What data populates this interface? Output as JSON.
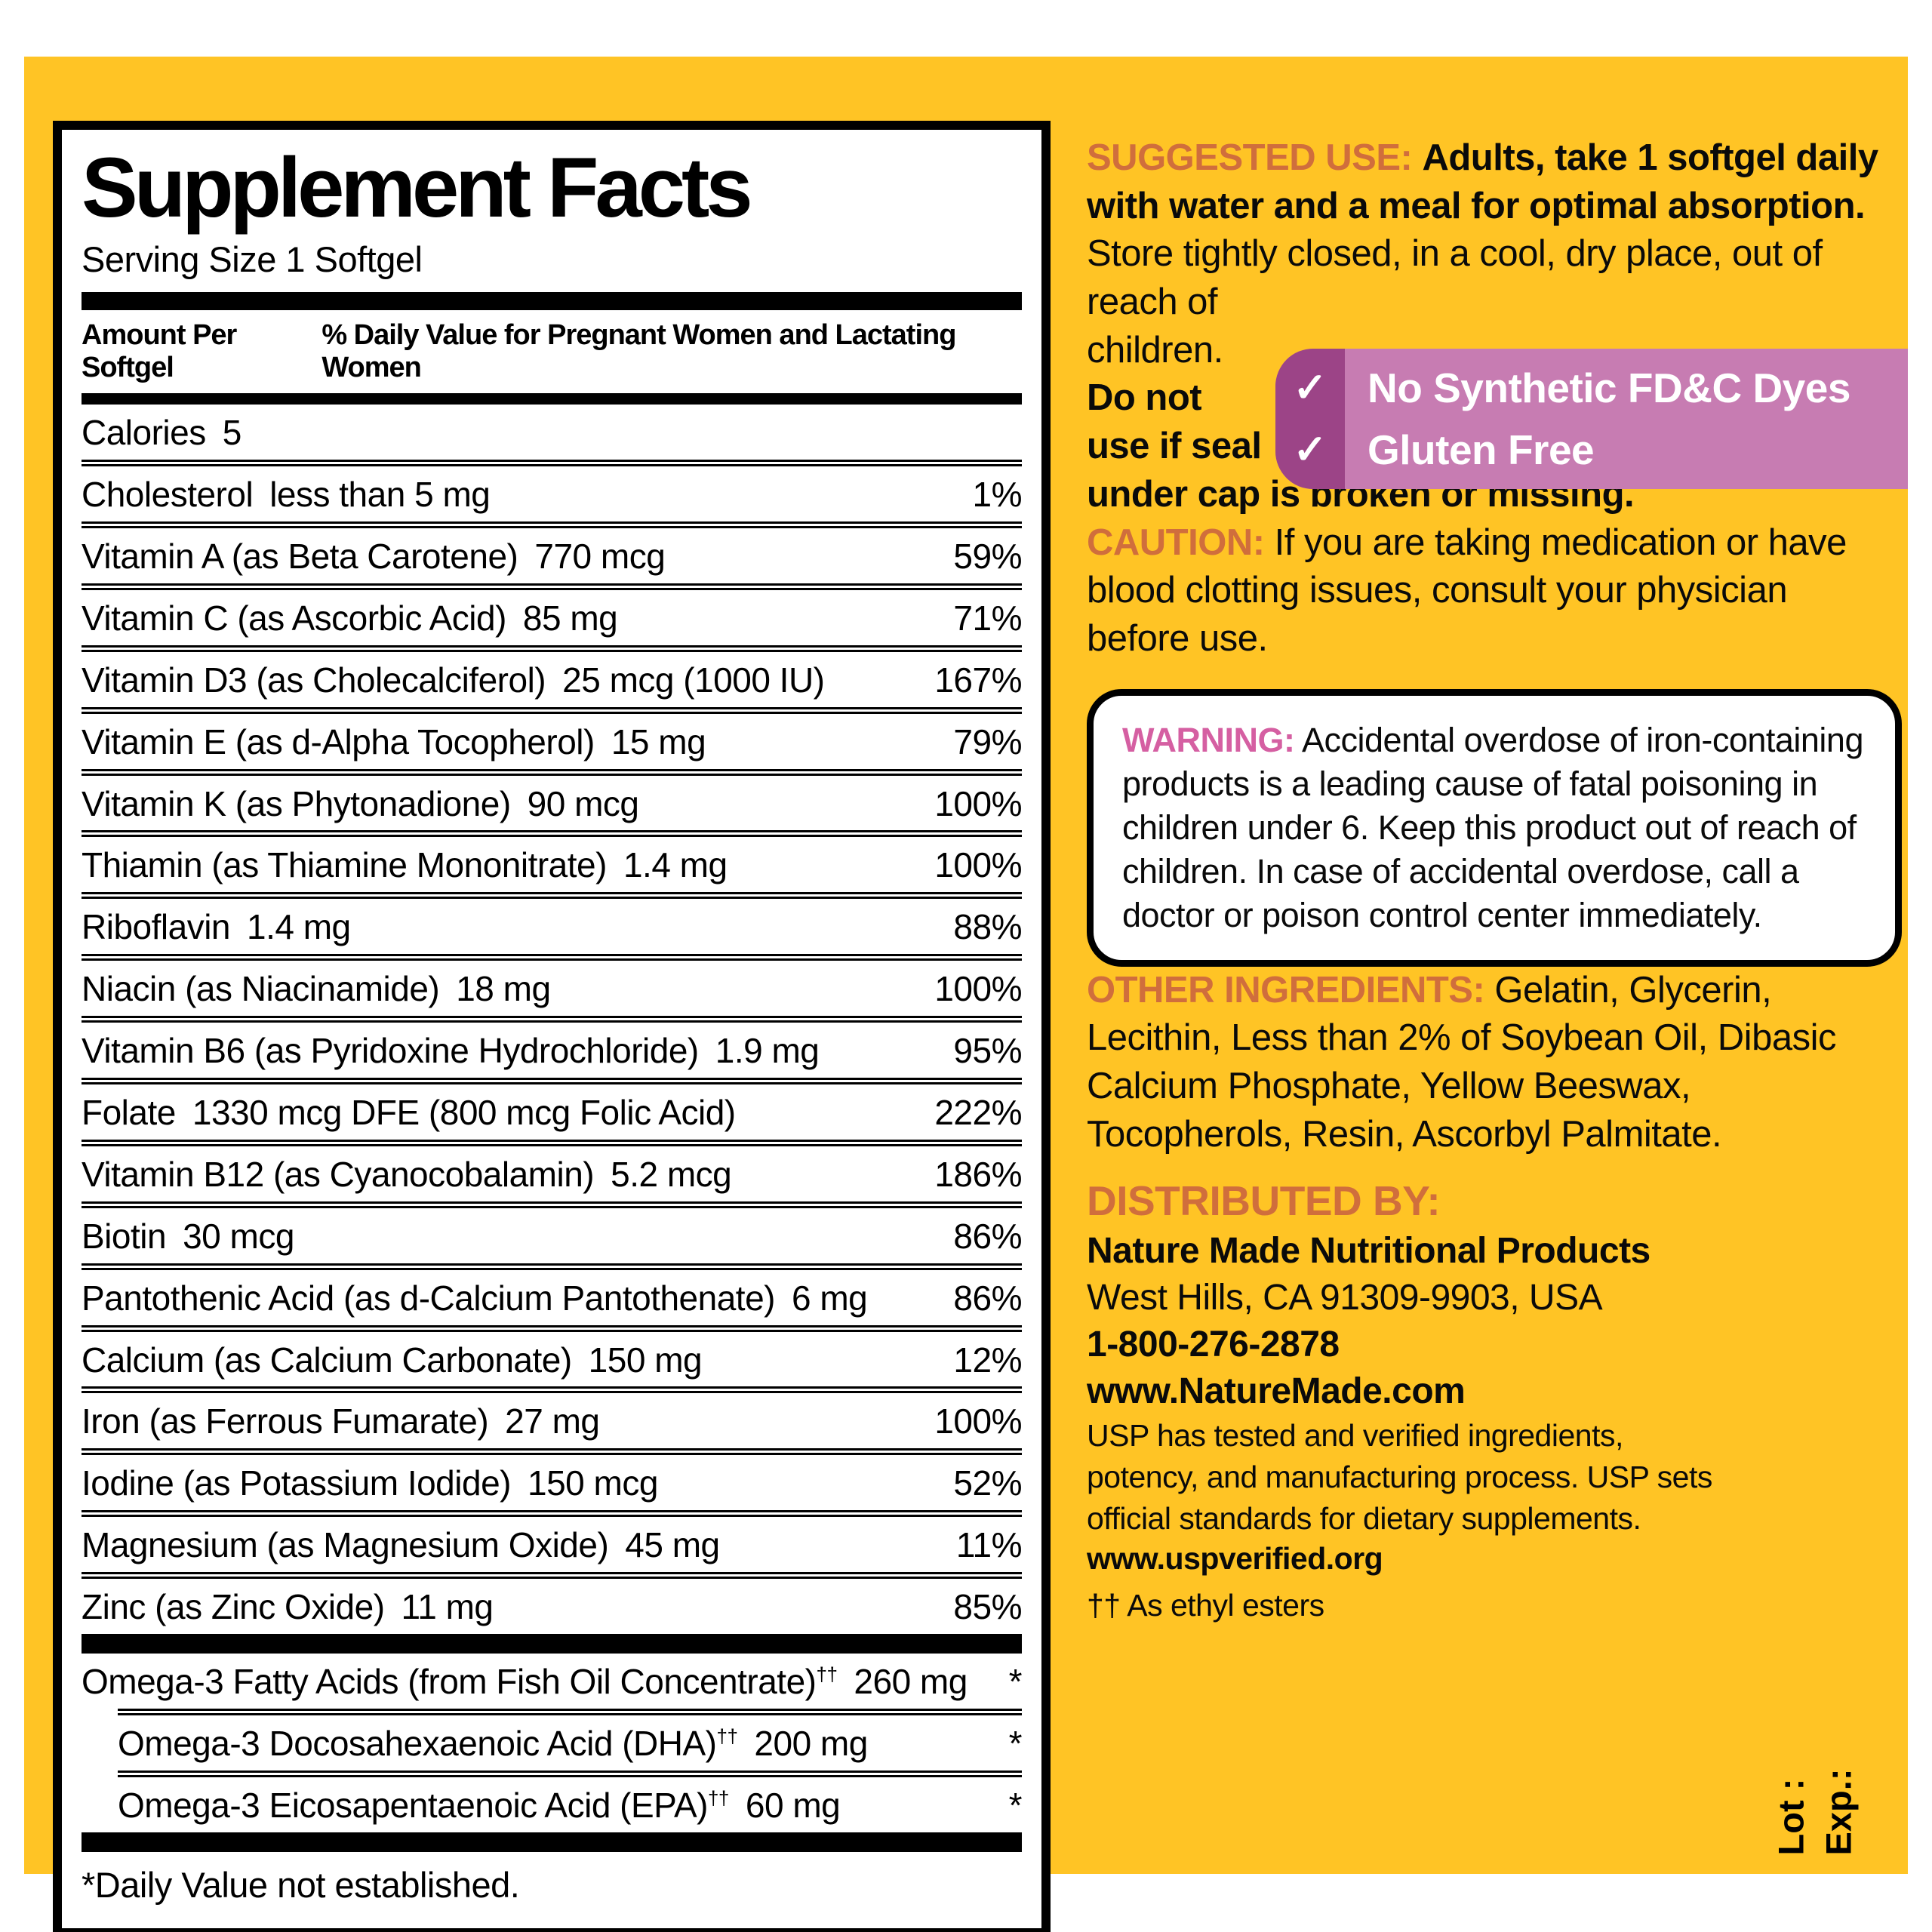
{
  "colors": {
    "label_yellow": "#FFC425",
    "accent_orange": "#D06E3C",
    "accent_pink": "#D55FA2",
    "badge_dark_purple": "#9C4487",
    "badge_light_pink": "#C77CB2"
  },
  "facts_panel": {
    "title": "Supplement Facts",
    "serving_size": "Serving Size 1 Softgel",
    "header_left": "Amount Per Softgel",
    "header_right": "% Daily Value for Pregnant Women and Lactating Women",
    "rows": [
      {
        "name": "Calories",
        "amount": "5",
        "dv": ""
      },
      {
        "name": "Cholesterol",
        "amount": "less than 5 mg",
        "dv": "1%"
      },
      {
        "name": "Vitamin A (as Beta Carotene)",
        "amount": "770 mcg",
        "dv": "59%"
      },
      {
        "name": "Vitamin C (as Ascorbic Acid)",
        "amount": "85 mg",
        "dv": "71%"
      },
      {
        "name": "Vitamin D3 (as Cholecalciferol)",
        "amount": "25 mcg (1000 IU)",
        "dv": "167%"
      },
      {
        "name": "Vitamin E (as d-Alpha Tocopherol)",
        "amount": "15 mg",
        "dv": "79%"
      },
      {
        "name": "Vitamin K (as Phytonadione)",
        "amount": "90 mcg",
        "dv": "100%"
      },
      {
        "name": "Thiamin (as Thiamine Mononitrate)",
        "amount": "1.4 mg",
        "dv": "100%"
      },
      {
        "name": "Riboflavin",
        "amount": "1.4 mg",
        "dv": "88%"
      },
      {
        "name": "Niacin (as Niacinamide)",
        "amount": "18 mg",
        "dv": "100%"
      },
      {
        "name": "Vitamin B6 (as Pyridoxine Hydrochloride)",
        "amount": "1.9 mg",
        "dv": "95%"
      },
      {
        "name": "Folate",
        "amount": "1330 mcg DFE (800 mcg Folic Acid)",
        "dv": "222%"
      },
      {
        "name": "Vitamin B12 (as Cyanocobalamin)",
        "amount": "5.2 mcg",
        "dv": "186%"
      },
      {
        "name": "Biotin",
        "amount": "30 mcg",
        "dv": "86%"
      },
      {
        "name": "Pantothenic Acid (as d-Calcium Pantothenate)",
        "amount": "6 mg",
        "dv": "86%"
      },
      {
        "name": "Calcium (as Calcium Carbonate)",
        "amount": "150 mg",
        "dv": "12%"
      },
      {
        "name": "Iron (as Ferrous Fumarate)",
        "amount": "27 mg",
        "dv": "100%"
      },
      {
        "name": "Iodine (as Potassium Iodide)",
        "amount": "150 mcg",
        "dv": "52%"
      },
      {
        "name": "Magnesium (as Magnesium Oxide)",
        "amount": "45 mg",
        "dv": "11%"
      },
      {
        "name": "Zinc (as Zinc Oxide)",
        "amount": "11 mg",
        "dv": "85%"
      }
    ],
    "omega_rows": [
      {
        "name": "Omega-3 Fatty Acids (from Fish Oil Concentrate)",
        "marker": "††",
        "amount": "260 mg",
        "dv": "*"
      },
      {
        "name": "Omega-3 Docosahexaenoic Acid (DHA)",
        "marker": "††",
        "amount": "200 mg",
        "dv": "*"
      },
      {
        "name": "Omega-3 Eicosapentaenoic Acid (EPA)",
        "marker": "††",
        "amount": "60 mg",
        "dv": "*"
      }
    ],
    "footnote": "*Daily Value not established."
  },
  "right_column": {
    "suggested_use_label": "SUGGESTED USE:",
    "suggested_use_bold": "Adults, take 1 softgel daily with water and a meal for optimal absorption.",
    "store_line": "Store tightly closed, in a cool, dry place, out of",
    "narrow_lines": [
      {
        "text": "reach of"
      },
      {
        "text": "children."
      },
      {
        "text": "Do not"
      },
      {
        "text": "use if seal"
      }
    ],
    "seal_tail": "under cap is broken or missing.",
    "badge": {
      "check": "✓",
      "line1": "No Synthetic FD&C Dyes",
      "line2": "Gluten Free"
    },
    "caution_label": "CAUTION:",
    "caution_text": "If you are taking medication or have blood clotting issues, consult your physician before use.",
    "warning_label": "WARNING:",
    "warning_text": "Accidental overdose of iron-containing products is a leading cause of fatal poisoning in children under 6. Keep this product out of reach of children. In case of accidental overdose, call a doctor or poison control center immediately.",
    "other_ingredients_label": "OTHER INGREDIENTS:",
    "other_ingredients_text": "Gelatin, Glycerin, Lecithin, Less than 2% of Soybean Oil, Dibasic Calcium Phosphate, Yellow Beeswax, Tocopherols, Resin, Ascorbyl Palmitate.",
    "distributed_label": "DISTRIBUTED BY:",
    "company": "Nature Made Nutritional Products",
    "address": "West Hills, CA 91309-9903, USA",
    "phone": "1-800-276-2878",
    "website": "www.NatureMade.com",
    "usp_text": "USP has tested and verified ingredients, potency, and manufacturing process. USP sets official standards for dietary supplements.",
    "usp_link": "www.uspverified.org",
    "ethyl_note": "†† As ethyl esters",
    "lot_label": "Lot :",
    "exp_label": "Exp.:"
  }
}
